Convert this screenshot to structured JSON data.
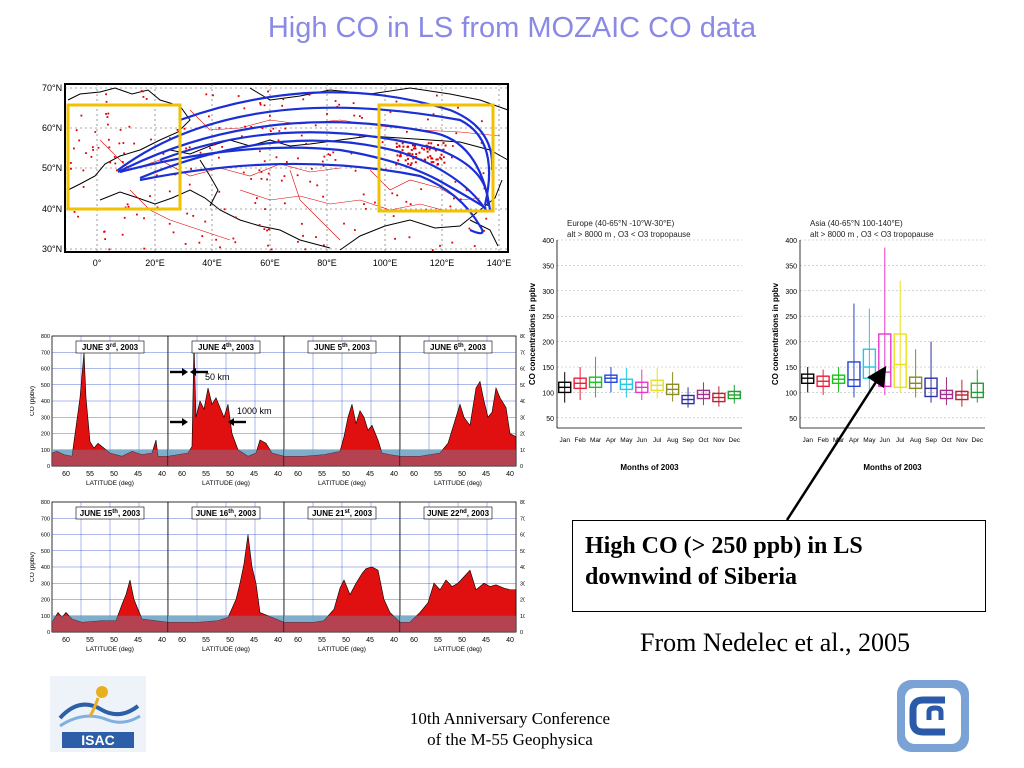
{
  "slide": {
    "title": "High CO in LS from MOZAIC CO data",
    "callout": {
      "line1": "High CO (> 250 ppb) in LS",
      "line2": "downwind of Siberia"
    },
    "citation": "From Nedelec et al., 2005",
    "conference": {
      "line1": "10th Anniversary Conference",
      "line2": "of the M-55 Geophysica"
    }
  },
  "map": {
    "lat_labels": [
      "70°N",
      "60°N",
      "50°N",
      "40°N",
      "30°N"
    ],
    "lon_labels": [
      "0°",
      "20°E",
      "40°E",
      "60°E",
      "80°E",
      "100°E",
      "120°E",
      "140°E"
    ],
    "colors": {
      "flight_tracks": "#1a2fd6",
      "high_co_points": "#e00000",
      "boxes": "#f2c200"
    }
  },
  "profiles": {
    "yticks": [
      "0",
      "100",
      "200",
      "300",
      "400",
      "500",
      "600",
      "700",
      "800"
    ],
    "xticks": [
      "60",
      "55",
      "50",
      "45",
      "40"
    ],
    "xlabel": "LATITUDE (deg)",
    "ylabel": "CO (ppbv)",
    "annotations": {
      "upper": "50 km",
      "lower": "1000 km"
    },
    "dates_row1": [
      {
        "main": "JUNE 3",
        "sup": "rd",
        "year": ", 2003"
      },
      {
        "main": "JUNE 4",
        "sup": "th",
        "year": ", 2003"
      },
      {
        "main": "JUNE 5",
        "sup": "th",
        "year": ", 2003"
      },
      {
        "main": "JUNE 6",
        "sup": "th",
        "year": ", 2003"
      }
    ],
    "dates_row2": [
      {
        "main": "JUNE 15",
        "sup": "th",
        "year": ", 2003"
      },
      {
        "main": "JUNE 16",
        "sup": "th",
        "year": ", 2003"
      },
      {
        "main": "JUNE 21",
        "sup": "st",
        "year": ", 2003"
      },
      {
        "main": "JUNE 22",
        "sup": "nd",
        "year": ", 2003"
      }
    ]
  },
  "boxplots": {
    "europe": {
      "title1": "Europe (40-65°N -10°W-30°E)",
      "title2": "alt > 8000 m , O3 < O3 tropopause",
      "ylabel": "CO concentrations in ppbv",
      "xlabel": "Months of 2003",
      "months": [
        "Jan",
        "Feb",
        "Mar",
        "Apr",
        "May",
        "Jun",
        "Jul",
        "Aug",
        "Sep",
        "Oct",
        "Nov",
        "Dec"
      ],
      "yticks": [
        "400",
        "350",
        "300",
        "250",
        "200",
        "150",
        "100",
        "50"
      ],
      "medians": [
        110,
        118,
        120,
        128,
        116,
        110,
        114,
        106,
        86,
        96,
        90,
        95
      ],
      "q1": [
        100,
        108,
        110,
        120,
        106,
        100,
        104,
        96,
        78,
        88,
        82,
        88
      ],
      "q3": [
        120,
        128,
        130,
        134,
        126,
        120,
        124,
        116,
        94,
        104,
        98,
        102
      ],
      "whisk_lo": [
        80,
        85,
        90,
        100,
        90,
        85,
        88,
        82,
        70,
        75,
        72,
        78
      ],
      "whisk_hi": [
        140,
        150,
        170,
        150,
        148,
        145,
        148,
        140,
        110,
        120,
        112,
        115
      ]
    },
    "asia": {
      "title1": "Asia (40-65°N 100-140°E)",
      "title2": "alt > 8000 m , O3 < O3 tropopause",
      "ylabel": "CO concentrations in ppbv",
      "xlabel": "Months of 2003",
      "months": [
        "Jan",
        "Feb",
        "Mar",
        "Apr",
        "May",
        "Jun",
        "Jul",
        "Aug",
        "Sep",
        "Oct",
        "Nov",
        "Dec"
      ],
      "yticks": [
        "400",
        "350",
        "300",
        "250",
        "200",
        "150",
        "100",
        "50"
      ],
      "medians": [
        128,
        122,
        126,
        125,
        150,
        140,
        155,
        118,
        108,
        96,
        95,
        100
      ],
      "q1": [
        118,
        112,
        118,
        112,
        128,
        112,
        110,
        108,
        92,
        88,
        86,
        90
      ],
      "q3": [
        136,
        132,
        134,
        160,
        185,
        215,
        215,
        130,
        128,
        104,
        102,
        118
      ],
      "whisk_lo": [
        100,
        95,
        100,
        90,
        100,
        95,
        100,
        90,
        80,
        75,
        72,
        80
      ],
      "whisk_hi": [
        150,
        145,
        150,
        275,
        265,
        385,
        320,
        185,
        200,
        130,
        125,
        145
      ]
    },
    "colors": [
      "#000000",
      "#e8203a",
      "#18c41a",
      "#2244d8",
      "#22c8e8",
      "#e838c8",
      "#e8e020",
      "#8a8a20",
      "#3030a8",
      "#a0308a",
      "#c02030",
      "#20a030"
    ]
  }
}
